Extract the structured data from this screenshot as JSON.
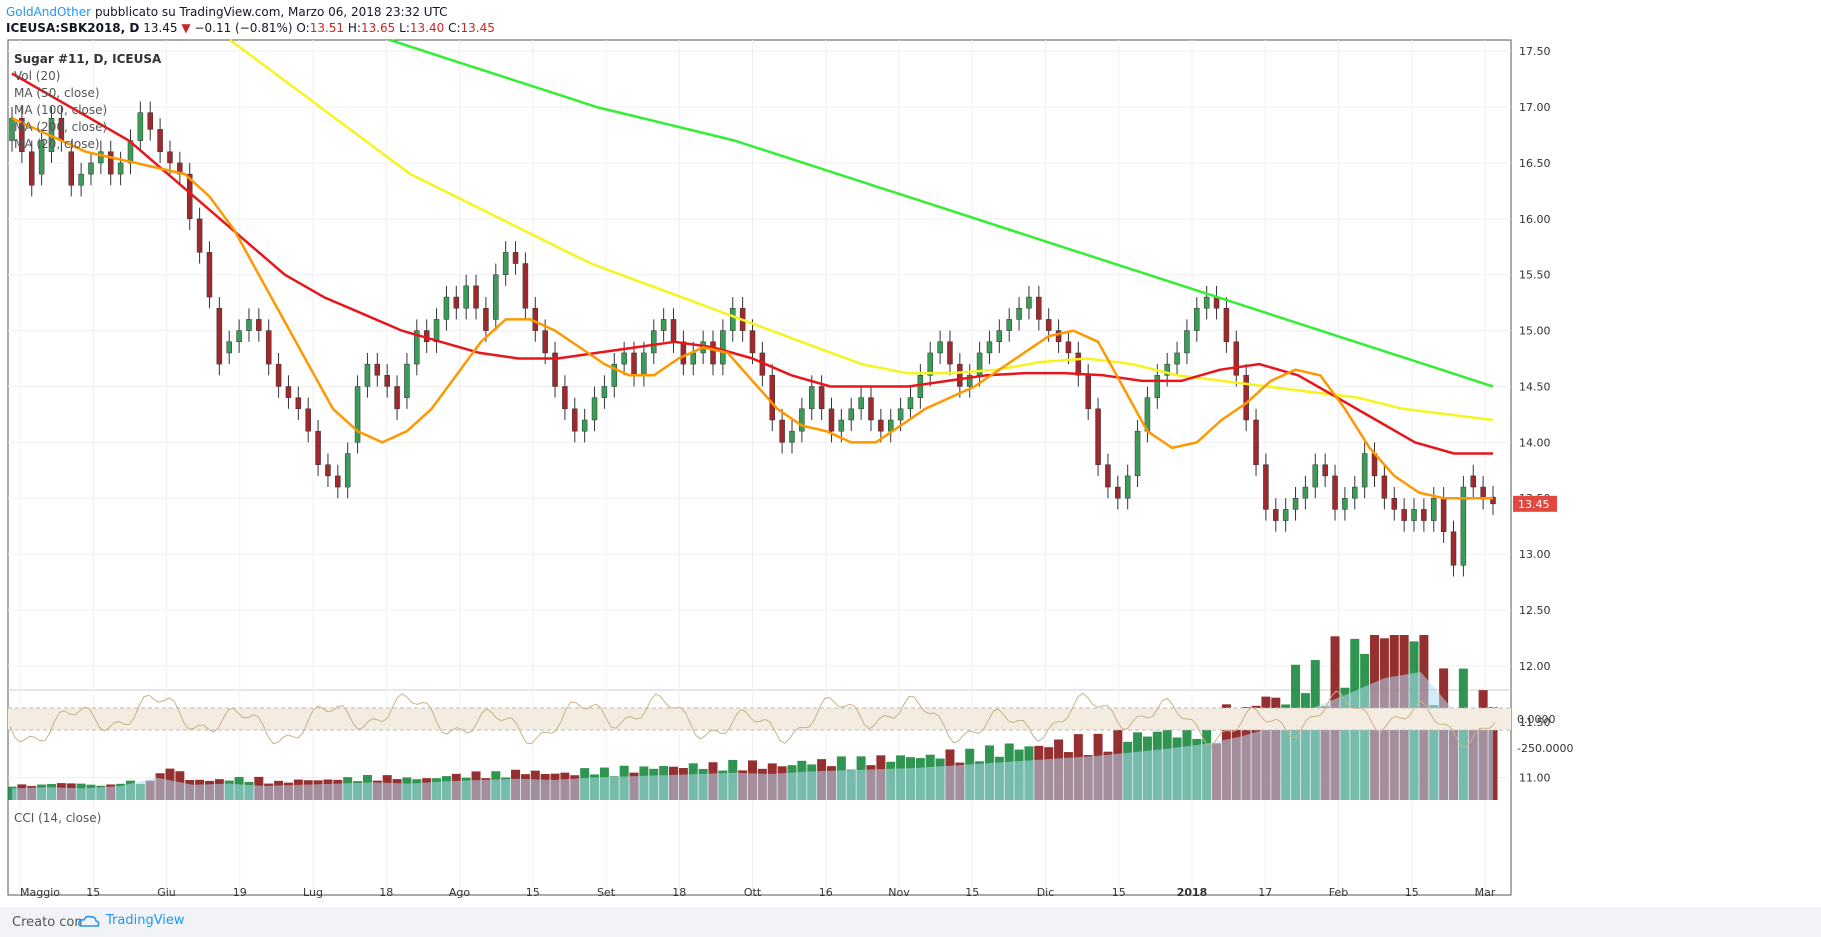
{
  "header": {
    "author": "GoldAndOther",
    "published": "pubblicato su TradingView.com, Marzo 06, 2018 23:32 UTC",
    "symbol": "ICEUSA:SBK2018, D",
    "last": "13.45",
    "change": "−0.11 (−0.81%)",
    "o_label": "O:",
    "o": "13.51",
    "h_label": "H:",
    "h": "13.65",
    "l_label": "L:",
    "l": "13.40",
    "c_label": "C:",
    "c": "13.45"
  },
  "legend": {
    "title": "Sugar #11, D, ICEUSA",
    "lines": [
      "Vol (20)",
      "MA (50, close)",
      "MA (100, close)",
      "MA (200, close)",
      "MA (20, close)"
    ]
  },
  "cci_label": "CCI (14, close)",
  "footer": {
    "made_with": "Creato con",
    "brand": "TradingView"
  },
  "chart_data": {
    "type": "candlestick",
    "title": "Sugar #11, D, ICEUSA",
    "ylim": [
      10.8,
      17.6
    ],
    "y_ticks": [
      "17.50",
      "17.00",
      "16.50",
      "16.00",
      "15.50",
      "15.00",
      "14.50",
      "14.00",
      "13.50",
      "13.00",
      "12.50",
      "12.00",
      "11.50",
      "11.00"
    ],
    "x_ticks": [
      "Maggio",
      "15",
      "Giu",
      "19",
      "Lug",
      "18",
      "Ago",
      "15",
      "Set",
      "18",
      "Ott",
      "16",
      "Nov",
      "15",
      "Dic",
      "15",
      "2018",
      "17",
      "Feb",
      "15",
      "Mar"
    ],
    "last_price_label": "13.45",
    "colors": {
      "up": "#3a9d57",
      "down": "#a0292e",
      "ma20": "#ff9800",
      "ma50": "#e8151b",
      "ma100": "#f6f31f",
      "ma200": "#33ee33",
      "vol_ma": "#b3dcf5",
      "cci": "#c8b28a",
      "cci_band": "#f4ece0"
    },
    "close": [
      16.9,
      16.6,
      16.3,
      16.7,
      16.9,
      16.7,
      16.3,
      16.4,
      16.5,
      16.6,
      16.4,
      16.5,
      16.7,
      16.95,
      16.8,
      16.6,
      16.5,
      16.4,
      16.0,
      15.7,
      15.3,
      14.7,
      14.9,
      15.0,
      15.1,
      15.0,
      14.7,
      14.5,
      14.4,
      14.3,
      14.1,
      13.8,
      13.7,
      13.6,
      13.9,
      14.5,
      14.7,
      14.6,
      14.5,
      14.3,
      14.7,
      15.0,
      14.9,
      15.1,
      15.3,
      15.2,
      15.4,
      15.2,
      15.0,
      15.5,
      15.7,
      15.6,
      15.2,
      15.0,
      14.8,
      14.5,
      14.3,
      14.1,
      14.2,
      14.4,
      14.5,
      14.7,
      14.8,
      14.6,
      14.8,
      15.0,
      15.1,
      14.9,
      14.7,
      14.8,
      14.9,
      14.7,
      15.0,
      15.2,
      15.0,
      14.8,
      14.6,
      14.2,
      14.0,
      14.1,
      14.3,
      14.5,
      14.3,
      14.1,
      14.2,
      14.3,
      14.4,
      14.2,
      14.1,
      14.2,
      14.3,
      14.4,
      14.6,
      14.8,
      14.9,
      14.7,
      14.5,
      14.6,
      14.8,
      14.9,
      15.0,
      15.1,
      15.2,
      15.3,
      15.1,
      15.0,
      14.9,
      14.8,
      14.6,
      14.3,
      13.8,
      13.6,
      13.5,
      13.7,
      14.1,
      14.4,
      14.6,
      14.7,
      14.8,
      15.0,
      15.2,
      15.3,
      15.2,
      14.9,
      14.6,
      14.2,
      13.8,
      13.4,
      13.3,
      13.4,
      13.5,
      13.6,
      13.8,
      13.7,
      13.4,
      13.5,
      13.6,
      13.9,
      13.7,
      13.5,
      13.4,
      13.3,
      13.4,
      13.3,
      13.5,
      13.2,
      12.9,
      13.6,
      13.6,
      13.5,
      13.45
    ],
    "open": [
      16.7,
      16.9,
      16.6,
      16.4,
      16.6,
      16.9,
      16.6,
      16.3,
      16.4,
      16.5,
      16.6,
      16.4,
      16.5,
      16.7,
      16.95,
      16.8,
      16.6,
      16.5,
      16.4,
      16.0,
      15.7,
      15.2,
      14.8,
      14.9,
      15.0,
      15.1,
      15.0,
      14.7,
      14.5,
      14.4,
      14.3,
      14.1,
      13.8,
      13.7,
      13.6,
      14.0,
      14.5,
      14.7,
      14.6,
      14.5,
      14.4,
      14.7,
      15.0,
      14.9,
      15.1,
      15.3,
      15.2,
      15.4,
      15.2,
      15.1,
      15.5,
      15.7,
      15.6,
      15.2,
      15.0,
      14.8,
      14.5,
      14.3,
      14.1,
      14.2,
      14.4,
      14.5,
      14.7,
      14.8,
      14.6,
      14.8,
      15.0,
      15.1,
      14.9,
      14.7,
      14.8,
      14.9,
      14.7,
      15.0,
      15.2,
      15.0,
      14.8,
      14.6,
      14.2,
      14.0,
      14.1,
      14.3,
      14.5,
      14.3,
      14.1,
      14.2,
      14.3,
      14.4,
      14.2,
      14.1,
      14.2,
      14.3,
      14.4,
      14.6,
      14.8,
      14.9,
      14.7,
      14.5,
      14.6,
      14.8,
      14.9,
      15.0,
      15.1,
      15.2,
      15.3,
      15.1,
      15.0,
      14.9,
      14.8,
      14.6,
      14.3,
      13.8,
      13.6,
      13.5,
      13.7,
      14.1,
      14.4,
      14.6,
      14.7,
      14.8,
      15.0,
      15.2,
      15.3,
      15.2,
      14.9,
      14.6,
      14.2,
      13.8,
      13.4,
      13.3,
      13.4,
      13.5,
      13.6,
      13.8,
      13.7,
      13.4,
      13.5,
      13.6,
      13.9,
      13.7,
      13.5,
      13.4,
      13.3,
      13.4,
      13.3,
      13.5,
      13.2,
      12.9,
      13.7,
      13.6,
      13.51
    ],
    "ma20": [
      16.9,
      16.8,
      16.7,
      16.6,
      16.55,
      16.5,
      16.45,
      16.4,
      16.2,
      15.9,
      15.5,
      15.1,
      14.7,
      14.3,
      14.1,
      14.0,
      14.1,
      14.3,
      14.6,
      14.9,
      15.1,
      15.1,
      15.0,
      14.85,
      14.7,
      14.6,
      14.6,
      14.75,
      14.85,
      14.8,
      14.55,
      14.3,
      14.15,
      14.1,
      14.0,
      14.0,
      14.15,
      14.3,
      14.4,
      14.5,
      14.65,
      14.8,
      14.95,
      15.0,
      14.9,
      14.5,
      14.1,
      13.95,
      14.0,
      14.2,
      14.35,
      14.55,
      14.65,
      14.6,
      14.3,
      13.95,
      13.7,
      13.55,
      13.5,
      13.5,
      13.5
    ],
    "ma50": [
      17.3,
      17.1,
      16.9,
      16.7,
      16.4,
      16.1,
      15.8,
      15.5,
      15.3,
      15.15,
      15.0,
      14.9,
      14.8,
      14.75,
      14.75,
      14.8,
      14.85,
      14.9,
      14.85,
      14.75,
      14.6,
      14.5,
      14.5,
      14.5,
      14.55,
      14.6,
      14.62,
      14.62,
      14.6,
      14.55,
      14.55,
      14.65,
      14.7,
      14.6,
      14.4,
      14.2,
      14.0,
      13.9,
      13.9
    ],
    "ma100": [
      17.6,
      17.3,
      17.0,
      16.7,
      16.4,
      16.2,
      16.0,
      15.8,
      15.6,
      15.45,
      15.3,
      15.15,
      15.0,
      14.85,
      14.7,
      14.62,
      14.62,
      14.65,
      14.72,
      14.75,
      14.7,
      14.6,
      14.55,
      14.5,
      14.45,
      14.4,
      14.3,
      14.25,
      14.2
    ],
    "ma200": [
      17.6,
      17.4,
      17.2,
      17.0,
      16.85,
      16.7,
      16.5,
      16.3,
      16.1,
      15.9,
      15.7,
      15.5,
      15.3,
      15.1,
      14.9,
      14.7,
      14.5
    ],
    "volume_scale": [
      0.03,
      0.04,
      0.03,
      0.05,
      0.12,
      0.06,
      0.07,
      0.05,
      0.06,
      0.07,
      0.08,
      0.07,
      0.09,
      0.1,
      0.11,
      0.1,
      0.12,
      0.13,
      0.14,
      0.15,
      0.16,
      0.15,
      0.17,
      0.18,
      0.19,
      0.2,
      0.22,
      0.24,
      0.26,
      0.28,
      0.3,
      0.33,
      0.36,
      0.4,
      0.46,
      0.55,
      0.7,
      0.82,
      0.95,
      1.0,
      0.65,
      0.55
    ],
    "cci_ticks": [
      "0.0000",
      "-250.0000"
    ]
  }
}
